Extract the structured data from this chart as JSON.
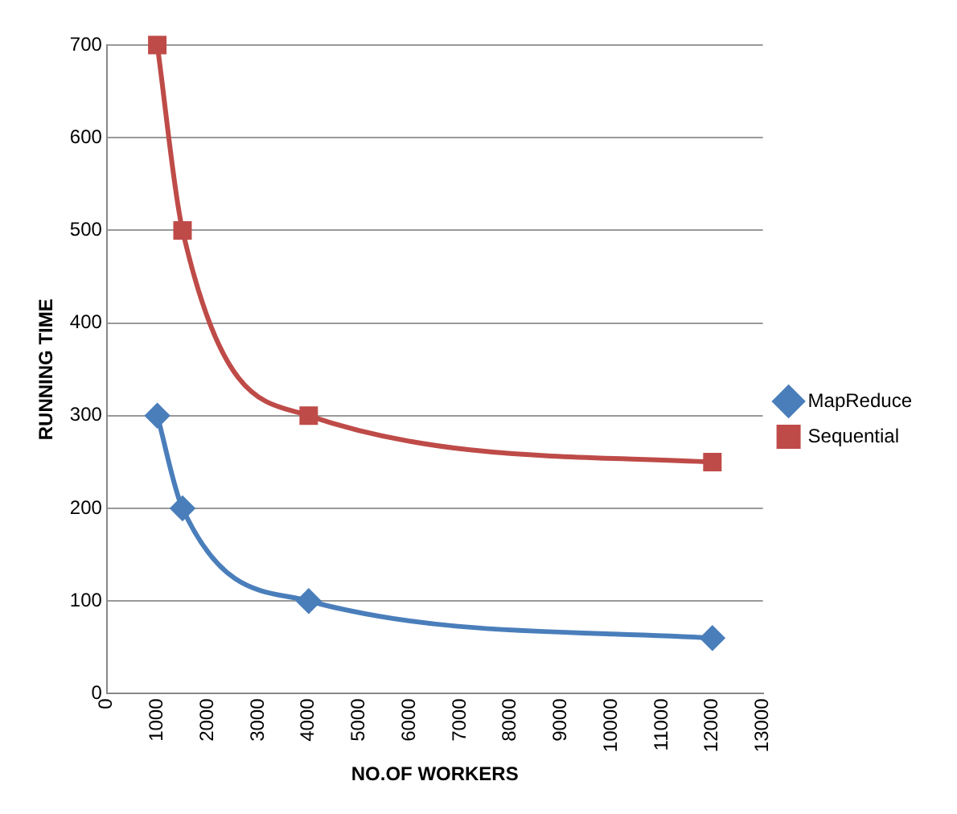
{
  "chart_data": {
    "type": "line",
    "xlabel": "NO.OF WORKERS",
    "ylabel": "RUNNING TIME",
    "x": [
      1000,
      1500,
      4000,
      12000
    ],
    "series": [
      {
        "name": "MapReduce",
        "color": "#4a7ebb",
        "marker": "diamond",
        "values": [
          300,
          200,
          100,
          60
        ]
      },
      {
        "name": "Sequential",
        "color": "#be4b48",
        "marker": "square",
        "values": [
          700,
          500,
          300,
          250
        ]
      }
    ],
    "xlim": [
      0,
      13000
    ],
    "xticks": [
      0,
      1000,
      2000,
      3000,
      4000,
      5000,
      6000,
      7000,
      8000,
      9000,
      10000,
      11000,
      12000,
      13000
    ],
    "ylim": [
      0,
      700
    ],
    "yticks": [
      0,
      100,
      200,
      300,
      400,
      500,
      600,
      700
    ],
    "grid": "y",
    "legend": "right"
  }
}
